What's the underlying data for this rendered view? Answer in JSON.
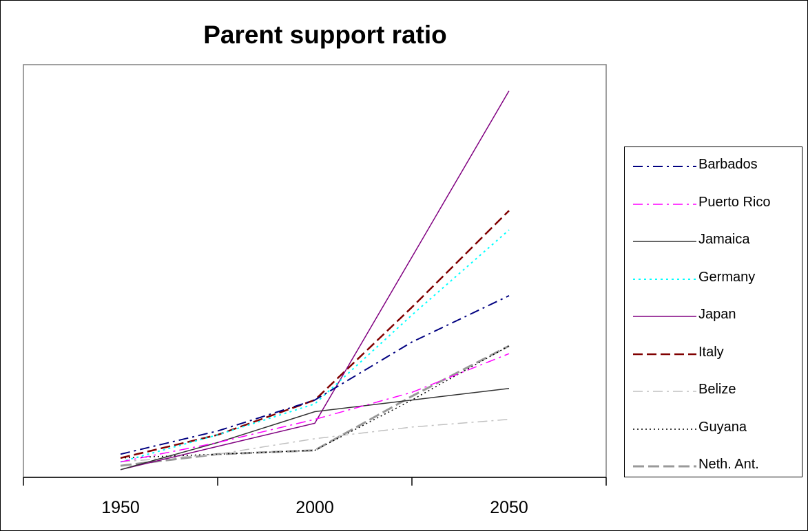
{
  "chart_data": {
    "type": "line",
    "title": "Parent support ratio",
    "xlabel": "",
    "ylabel": "",
    "x": [
      1950,
      1975,
      2000,
      2025,
      2050
    ],
    "x_tick_labels": [
      "1950",
      "2000",
      "2050"
    ],
    "xlim": [
      1925,
      2075
    ],
    "ylim": [
      0,
      100
    ],
    "grid": false,
    "legend_position": "right",
    "series": [
      {
        "name": "Barbados",
        "color": "#000080",
        "dash": "14,6,3,6",
        "width": 2,
        "values": [
          6,
          12,
          20,
          35,
          47
        ]
      },
      {
        "name": "Puerto Rico",
        "color": "#ff00ff",
        "dash": "14,6,3,6",
        "width": 1.5,
        "values": [
          4,
          9,
          15,
          22,
          32
        ]
      },
      {
        "name": "Jamaica",
        "color": "#333333",
        "dash": "",
        "width": 1.5,
        "values": [
          2,
          9,
          17,
          20,
          23
        ]
      },
      {
        "name": "Germany",
        "color": "#00ffff",
        "dash": "3,5",
        "width": 2,
        "values": [
          4,
          11,
          19,
          42,
          64
        ]
      },
      {
        "name": "Japan",
        "color": "#800080",
        "dash": "",
        "width": 1.5,
        "values": [
          2,
          8,
          14,
          57,
          100
        ]
      },
      {
        "name": "Italy",
        "color": "#800000",
        "dash": "14,6",
        "width": 2.5,
        "values": [
          5,
          11,
          20,
          44,
          69
        ]
      },
      {
        "name": "Belize",
        "color": "#c0c0c0",
        "dash": "14,6,3,6",
        "width": 1.5,
        "values": [
          4,
          6,
          10,
          13,
          15
        ]
      },
      {
        "name": "Guyana",
        "color": "#000000",
        "dash": "2,4",
        "width": 1.5,
        "values": [
          5,
          6,
          7,
          20,
          34
        ]
      },
      {
        "name": "Neth. Ant.",
        "color": "#999999",
        "dash": "16,6",
        "width": 3,
        "values": [
          3,
          6,
          7,
          21,
          34
        ]
      }
    ]
  }
}
